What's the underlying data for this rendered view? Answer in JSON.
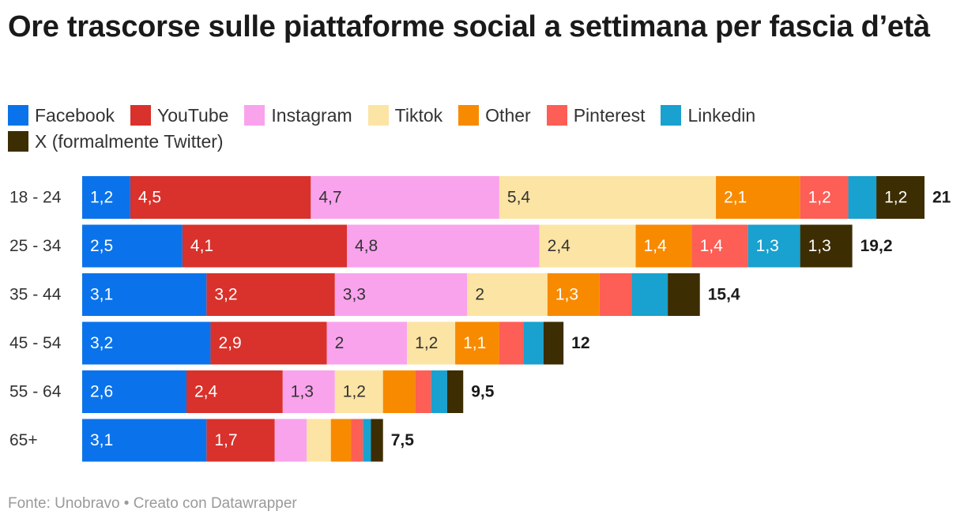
{
  "title": "Ore trascorse sulle piattaforme social a settimana per fascia d’età",
  "source": "Fonte: Unobravo • Creato con Datawrapper",
  "legend": [
    {
      "name": "Facebook",
      "color": "#0a73eb"
    },
    {
      "name": "YouTube",
      "color": "#d9312b"
    },
    {
      "name": "Instagram",
      "color": "#f9a3ed"
    },
    {
      "name": "Tiktok",
      "color": "#fce4a4"
    },
    {
      "name": "Other",
      "color": "#f88a00"
    },
    {
      "name": "Pinterest",
      "color": "#fd5e55"
    },
    {
      "name": "Linkedin",
      "color": "#19a1cf"
    },
    {
      "name": "X (formalmente Twitter)",
      "color": "#3d2d02"
    }
  ],
  "chart_data": {
    "type": "bar",
    "orientation": "horizontal",
    "stacked": true,
    "categories": [
      "18 - 24",
      "25 - 34",
      "35 - 44",
      "45 - 54",
      "55 - 64",
      "65+"
    ],
    "series": [
      {
        "name": "Facebook",
        "values": [
          1.2,
          2.5,
          3.1,
          3.2,
          2.6,
          3.1
        ],
        "labels": [
          "1,2",
          "2,5",
          "3,1",
          "3,2",
          "2,6",
          "3,1"
        ]
      },
      {
        "name": "YouTube",
        "values": [
          4.5,
          4.1,
          3.2,
          2.9,
          2.4,
          1.7
        ],
        "labels": [
          "4,5",
          "4,1",
          "3,2",
          "2,9",
          "2,4",
          "1,7"
        ]
      },
      {
        "name": "Instagram",
        "values": [
          4.7,
          4.8,
          3.3,
          2.0,
          1.3,
          0.8
        ],
        "labels": [
          "4,7",
          "4,8",
          "3,3",
          "2",
          "1,3",
          ""
        ]
      },
      {
        "name": "Tiktok",
        "values": [
          5.4,
          2.4,
          2.0,
          1.2,
          1.2,
          0.6
        ],
        "labels": [
          "5,4",
          "2,4",
          "2",
          "1,2",
          "1,2",
          ""
        ]
      },
      {
        "name": "Other",
        "values": [
          2.1,
          1.4,
          1.3,
          1.1,
          0.8,
          0.5
        ],
        "labels": [
          "2,1",
          "1,4",
          "1,3",
          "1,1",
          "",
          ""
        ]
      },
      {
        "name": "Pinterest",
        "values": [
          1.2,
          1.4,
          0.8,
          0.6,
          0.4,
          0.3
        ],
        "labels": [
          "1,2",
          "1,4",
          "",
          "",
          "",
          ""
        ]
      },
      {
        "name": "Linkedin",
        "values": [
          0.7,
          1.3,
          0.9,
          0.5,
          0.4,
          0.2
        ],
        "labels": [
          "",
          "1,3",
          "",
          "",
          "",
          ""
        ]
      },
      {
        "name": "X (formalmente Twitter)",
        "values": [
          1.2,
          1.3,
          0.8,
          0.5,
          0.4,
          0.3
        ],
        "labels": [
          "1,2",
          "1,3",
          "",
          "",
          "",
          ""
        ]
      }
    ],
    "totals": [
      21,
      19.2,
      15.4,
      12,
      9.5,
      7.5
    ],
    "total_labels": [
      "21",
      "19,2",
      "15,4",
      "12",
      "9,5",
      "7,5"
    ],
    "xlim": [
      0,
      21
    ]
  }
}
